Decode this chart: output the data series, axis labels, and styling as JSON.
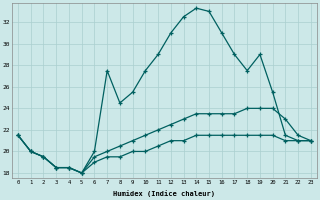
{
  "xlabel": "Humidex (Indice chaleur)",
  "bg_color": "#cce8e8",
  "grid_color": "#aacfcf",
  "line_color": "#006060",
  "xlim": [
    -0.5,
    23.5
  ],
  "ylim": [
    17.5,
    33.8
  ],
  "xticks": [
    0,
    1,
    2,
    3,
    4,
    5,
    6,
    7,
    8,
    9,
    10,
    11,
    12,
    13,
    14,
    15,
    16,
    17,
    18,
    19,
    20,
    21,
    22,
    23
  ],
  "yticks": [
    18,
    20,
    22,
    24,
    26,
    28,
    30,
    32
  ],
  "line1_x": [
    0,
    1,
    2,
    3,
    4,
    5,
    6,
    7,
    8,
    9,
    10,
    11,
    12,
    13,
    14,
    15,
    16,
    17,
    18,
    19,
    20,
    21,
    22,
    23
  ],
  "line1_y": [
    21.5,
    20.0,
    19.5,
    18.5,
    18.5,
    18.0,
    20.0,
    27.5,
    24.5,
    25.5,
    27.5,
    29.0,
    31.0,
    32.5,
    33.3,
    33.0,
    31.0,
    29.0,
    27.5,
    29.0,
    25.5,
    21.5,
    21.0,
    21.0
  ],
  "line2_x": [
    0,
    1,
    2,
    3,
    4,
    5,
    6,
    7,
    8,
    9,
    10,
    11,
    12,
    13,
    14,
    15,
    16,
    17,
    18,
    19,
    20,
    21,
    22,
    23
  ],
  "line2_y": [
    21.5,
    20.0,
    19.5,
    18.5,
    18.5,
    18.0,
    19.5,
    20.0,
    20.5,
    21.0,
    21.5,
    22.0,
    22.5,
    23.0,
    23.5,
    23.5,
    23.5,
    23.5,
    24.0,
    24.0,
    24.0,
    23.0,
    21.5,
    21.0
  ],
  "line3_x": [
    0,
    1,
    2,
    3,
    4,
    5,
    6,
    7,
    8,
    9,
    10,
    11,
    12,
    13,
    14,
    15,
    16,
    17,
    18,
    19,
    20,
    21,
    22,
    23
  ],
  "line3_y": [
    21.5,
    20.0,
    19.5,
    18.5,
    18.5,
    18.0,
    19.0,
    19.5,
    19.5,
    20.0,
    20.0,
    20.5,
    21.0,
    21.0,
    21.5,
    21.5,
    21.5,
    21.5,
    21.5,
    21.5,
    21.5,
    21.0,
    21.0,
    21.0
  ]
}
